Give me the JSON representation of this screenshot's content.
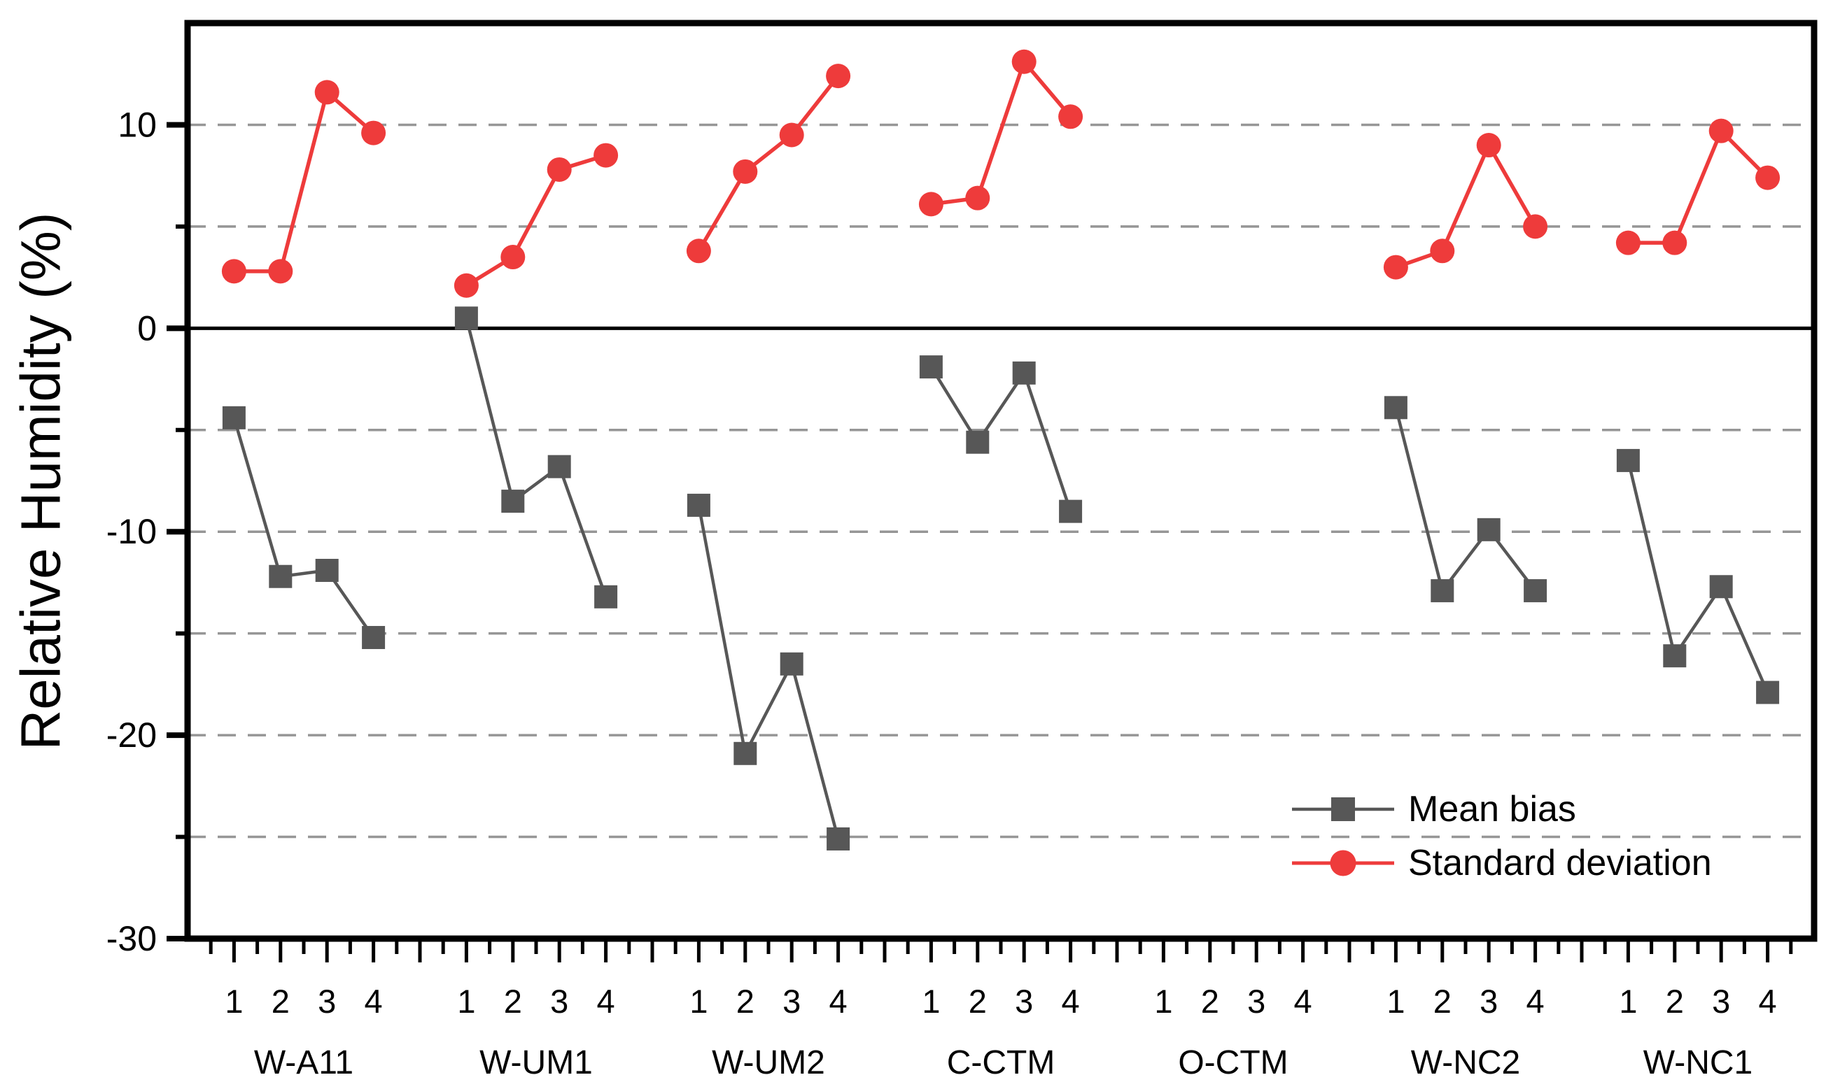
{
  "chart_data": {
    "type": "line",
    "title": "",
    "xlabel": "",
    "ylabel": "Relative Humidity (%)",
    "ylim": [
      -30,
      15
    ],
    "y_major_ticks": [
      10,
      0,
      -10,
      -20,
      -30
    ],
    "y_minor_ticks": [
      5,
      -5,
      -15,
      -25
    ],
    "gridlines_at": [
      10,
      5,
      -5,
      -10,
      -15,
      -20,
      -25
    ],
    "gridline_style": "dashed",
    "zero_line": true,
    "legend_position": "inside-lower-right",
    "groups": [
      "W-A11",
      "W-UM1",
      "W-UM2",
      "C-CTM",
      "O-CTM",
      "W-NC2",
      "W-NC1"
    ],
    "points_per_group_labels": [
      "1",
      "2",
      "3",
      "4"
    ],
    "series": [
      {
        "name": "Mean bias",
        "marker": "square",
        "color": "#575757",
        "values": [
          [
            -4.4,
            -12.2,
            -11.9,
            -15.2
          ],
          [
            0.5,
            -8.5,
            -6.8,
            -13.2
          ],
          [
            -8.7,
            -20.9,
            -16.5,
            -25.1
          ],
          [
            -1.9,
            -5.6,
            -2.2,
            -9.0
          ],
          [
            null,
            null,
            null,
            null
          ],
          [
            -3.9,
            -12.9,
            -9.9,
            -12.9
          ],
          [
            -6.5,
            -16.1,
            -12.7,
            -17.9
          ]
        ]
      },
      {
        "name": "Standard deviation",
        "marker": "circle",
        "color": "#ee3b3b",
        "values": [
          [
            2.8,
            2.8,
            11.6,
            9.6
          ],
          [
            2.1,
            3.5,
            7.8,
            8.5
          ],
          [
            3.8,
            7.7,
            9.5,
            12.4
          ],
          [
            6.1,
            6.4,
            13.1,
            10.4
          ],
          [
            null,
            null,
            null,
            null
          ],
          [
            3.0,
            3.8,
            9.0,
            5.0
          ],
          [
            4.2,
            4.2,
            9.7,
            7.4
          ]
        ]
      }
    ],
    "colors": {
      "axis": "#000000",
      "gridline": "#969696",
      "mean_bias": "#575757",
      "standard_deviation": "#ee3b3b"
    }
  }
}
